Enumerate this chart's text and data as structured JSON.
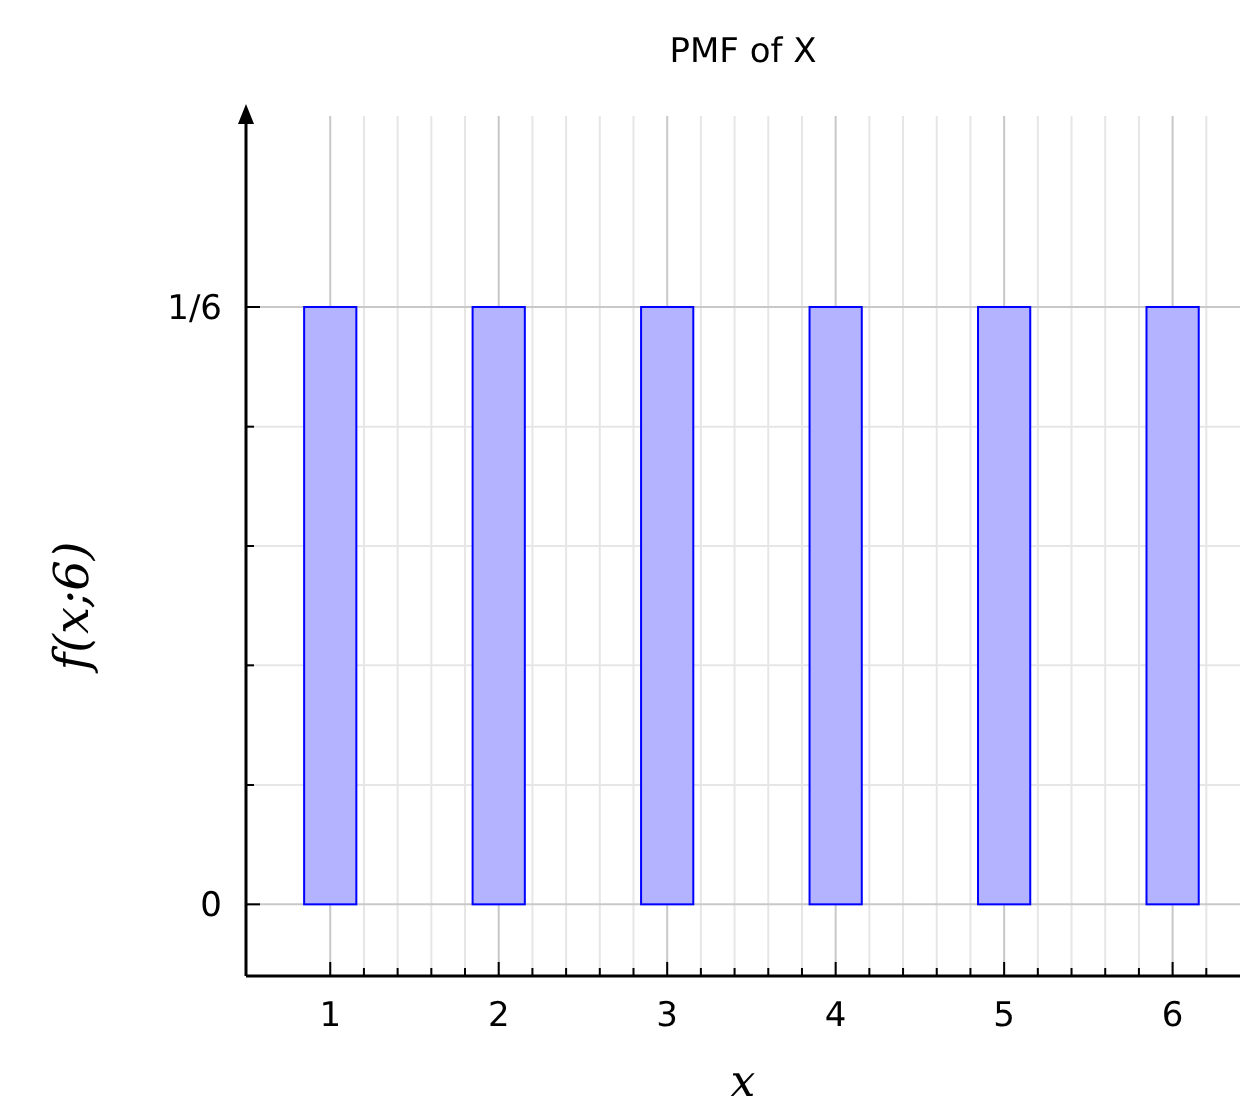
{
  "chart_data": {
    "type": "bar",
    "title": "PMF of X",
    "xlabel": "x",
    "ylabel": "f(x;6)",
    "x": [
      1,
      2,
      3,
      4,
      5,
      6
    ],
    "values": [
      0.1667,
      0.1667,
      0.1667,
      0.1667,
      0.1667,
      0.1667
    ],
    "color": "#b3b3ff",
    "xlim": [
      0.5,
      6.4
    ],
    "ylim": [
      -0.02,
      0.22
    ],
    "xticks": [
      1,
      2,
      3,
      4,
      5,
      6,
      {
        "value": 1.2,
        "label": null
      },
      {
        "value": 1.4,
        "label": null
      },
      {
        "value": 1.6,
        "label": null
      },
      {
        "value": 1.8,
        "label": null
      },
      {
        "value": 2.2,
        "label": null
      },
      {
        "value": 2.4,
        "label": null
      },
      {
        "value": 2.6,
        "label": null
      },
      {
        "value": 2.8,
        "label": null
      },
      {
        "value": 3.2,
        "label": null
      },
      {
        "value": 3.4,
        "label": null
      },
      {
        "value": 3.6,
        "label": null
      },
      {
        "value": 3.8,
        "label": null
      },
      {
        "value": 4.2,
        "label": null
      },
      {
        "value": 4.4,
        "label": null
      },
      {
        "value": 4.6,
        "label": null
      },
      {
        "value": 4.8,
        "label": null
      },
      {
        "value": 5.2,
        "label": null
      },
      {
        "value": 5.4,
        "label": null
      },
      {
        "value": 5.6,
        "label": null
      },
      {
        "value": 5.8,
        "label": null
      },
      {
        "value": 6.2,
        "label": null
      }
    ],
    "yticks": [
      0,
      {
        "value": 0.0333,
        "label": null
      },
      {
        "value": 0.0667,
        "label": null
      },
      {
        "value": 0.1,
        "label": null
      },
      {
        "value": 0.1333,
        "label": null
      },
      {
        "value": 0.1667,
        "label": "1/6"
      }
    ],
    "grid": true
  }
}
